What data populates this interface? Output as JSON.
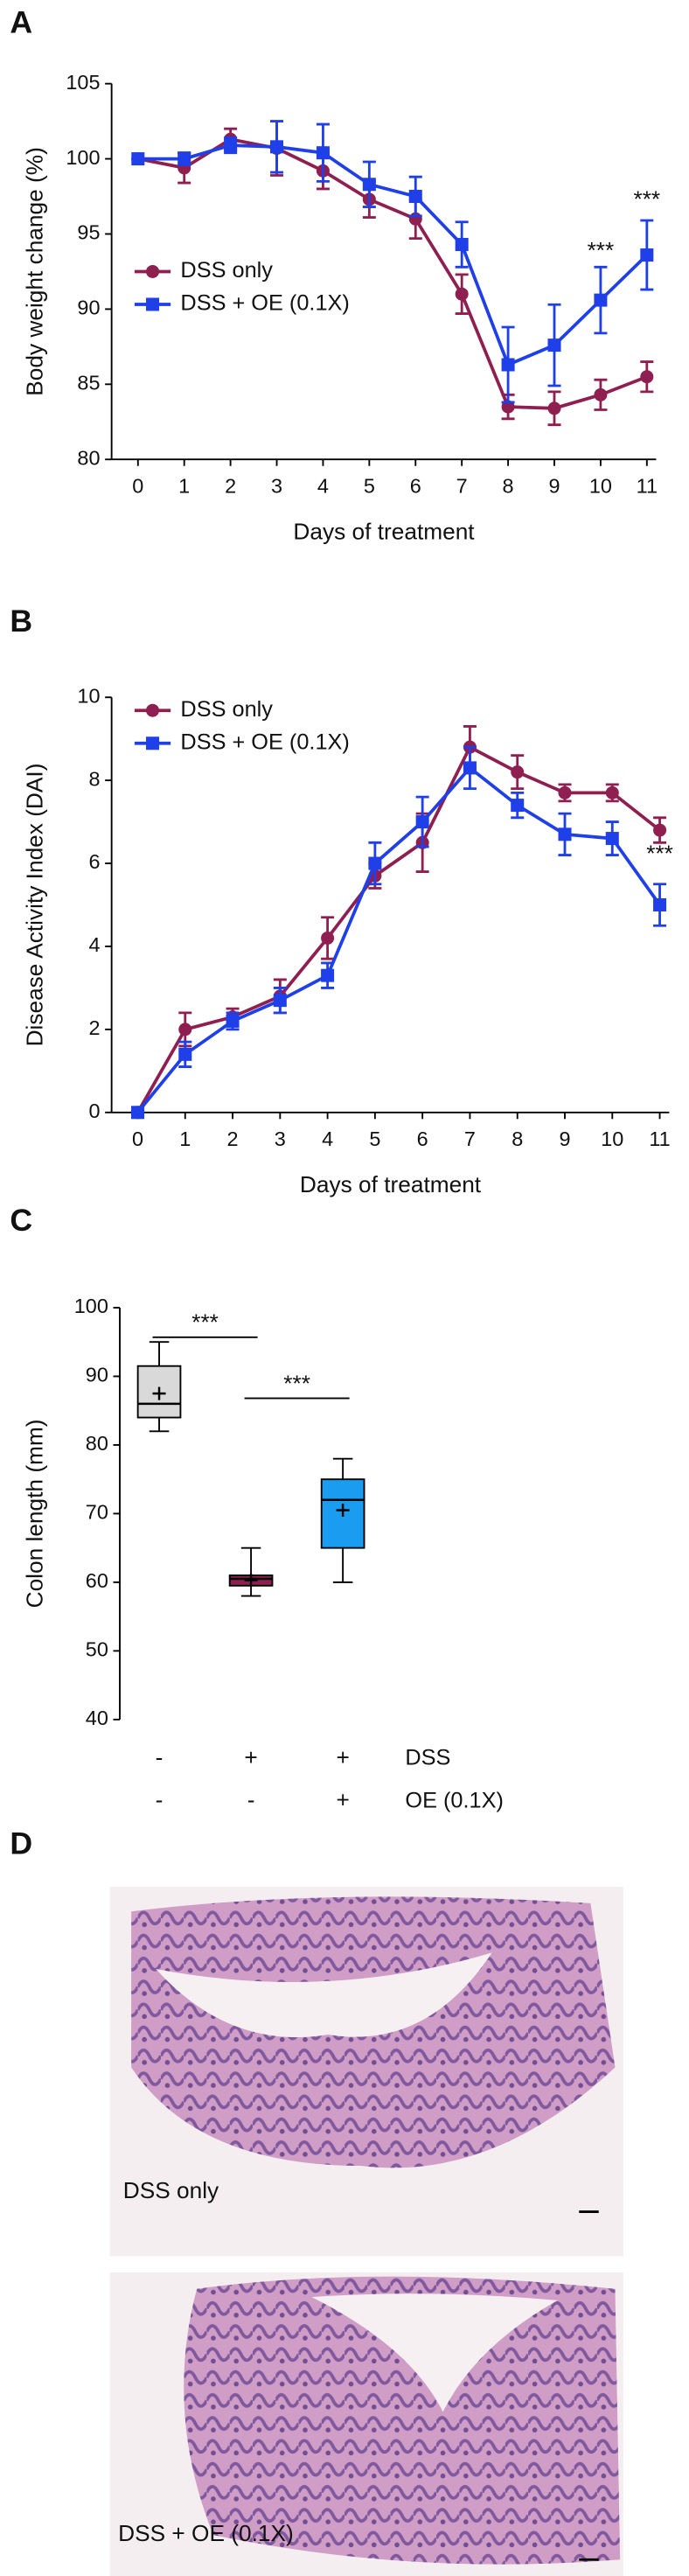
{
  "chart_data": [
    {
      "type": "line",
      "panel_label": "A",
      "xlabel": "Days of treatment",
      "ylabel": "Body weight change (%)",
      "x": [
        0,
        1,
        2,
        3,
        4,
        5,
        6,
        7,
        8,
        9,
        10,
        11
      ],
      "xlim": [
        -0.57,
        11.2
      ],
      "xticks": [
        0,
        1,
        2,
        3,
        4,
        5,
        6,
        7,
        8,
        9,
        10,
        11
      ],
      "ylim": [
        80,
        105
      ],
      "yticks": [
        80,
        85,
        90,
        95,
        100,
        105
      ],
      "legend": "center left",
      "series": [
        {
          "name": "DSS only",
          "color": "#8e1f50",
          "marker": "circle",
          "values": [
            100,
            99.4,
            101.3,
            100.7,
            99.2,
            97.3,
            96,
            91,
            83.5,
            83.4,
            84.3,
            85.5
          ],
          "errors": [
            0,
            1,
            0.7,
            1.8,
            1.2,
            1.2,
            1.3,
            1.3,
            0.8,
            1.1,
            1,
            1
          ]
        },
        {
          "name": "DSS + OE (0.1X)",
          "color": "#1f3fe8",
          "marker": "square",
          "values": [
            100,
            100,
            100.9,
            100.8,
            100.4,
            98.3,
            97.5,
            94.3,
            86.3,
            87.6,
            90.6,
            93.6
          ],
          "errors": [
            0,
            0.4,
            0.5,
            1.7,
            1.9,
            1.5,
            1.3,
            1.5,
            2.5,
            2.7,
            2.2,
            2.3
          ]
        }
      ],
      "annotations": [
        {
          "text": "***",
          "x": 10,
          "y": 93.8
        },
        {
          "text": "***",
          "x": 11,
          "y": 97.2
        }
      ]
    },
    {
      "type": "line",
      "panel_label": "B",
      "xlabel": "Days of treatment",
      "ylabel": "Disease Activity Index (DAI)",
      "x": [
        0,
        1,
        2,
        3,
        4,
        5,
        6,
        7,
        8,
        9,
        10,
        11
      ],
      "xlim": [
        -0.55,
        11.2
      ],
      "xticks": [
        0,
        1,
        2,
        3,
        4,
        5,
        6,
        7,
        8,
        9,
        10,
        11
      ],
      "ylim": [
        0,
        10
      ],
      "yticks": [
        0,
        2,
        4,
        6,
        8,
        10
      ],
      "legend": "upper left",
      "series": [
        {
          "name": "DSS only",
          "color": "#8e1f50",
          "marker": "circle",
          "values": [
            0,
            2,
            2.3,
            2.8,
            4.2,
            5.7,
            6.5,
            8.8,
            8.2,
            7.7,
            7.7,
            6.8
          ],
          "errors": [
            0,
            0.4,
            0.2,
            0.4,
            0.5,
            0.3,
            0.7,
            0.5,
            0.4,
            0.2,
            0.2,
            0.3
          ]
        },
        {
          "name": "DSS + OE (0.1X)",
          "color": "#1f3fe8",
          "marker": "square",
          "values": [
            0,
            1.4,
            2.2,
            2.7,
            3.3,
            6,
            7,
            8.3,
            7.4,
            6.7,
            6.6,
            5
          ],
          "errors": [
            0,
            0.3,
            0.2,
            0.3,
            0.3,
            0.5,
            0.6,
            0.5,
            0.3,
            0.5,
            0.4,
            0.5
          ]
        }
      ],
      "annotations": [
        {
          "text": "***",
          "x": 11,
          "y": 6.2
        }
      ]
    },
    {
      "type": "box",
      "panel_label": "C",
      "ylabel": "Colon length (mm)",
      "ylim": [
        40,
        100
      ],
      "yticks": [
        40,
        50,
        60,
        70,
        80,
        90,
        100
      ],
      "groups": [
        {
          "color": "#d9d9d9",
          "min": 82,
          "q1": 84,
          "median": 86,
          "q3": 91.5,
          "max": 95,
          "mean": 87.5
        },
        {
          "color": "#8e1f50",
          "min": 58,
          "q1": 59.5,
          "median": 60.5,
          "q3": 61,
          "max": 65,
          "mean": 60.3
        },
        {
          "color": "#1a9cf0",
          "min": 60,
          "q1": 65,
          "median": 72,
          "q3": 75,
          "max": 78,
          "mean": 70.5
        }
      ],
      "brackets": [
        {
          "from": 0,
          "to": 1,
          "y": 95.7,
          "text": "***"
        },
        {
          "from": 1,
          "to": 2,
          "y": 86.8,
          "text": "***"
        }
      ],
      "conditions": [
        {
          "name": "DSS",
          "signs": [
            "-",
            "+",
            "+"
          ]
        },
        {
          "name": "OE (0.1X)",
          "signs": [
            "-",
            "-",
            "+"
          ]
        }
      ]
    }
  ],
  "images": {
    "panel_label": "D",
    "captions": [
      "DSS only",
      "DSS + OE (0.1X)"
    ]
  }
}
